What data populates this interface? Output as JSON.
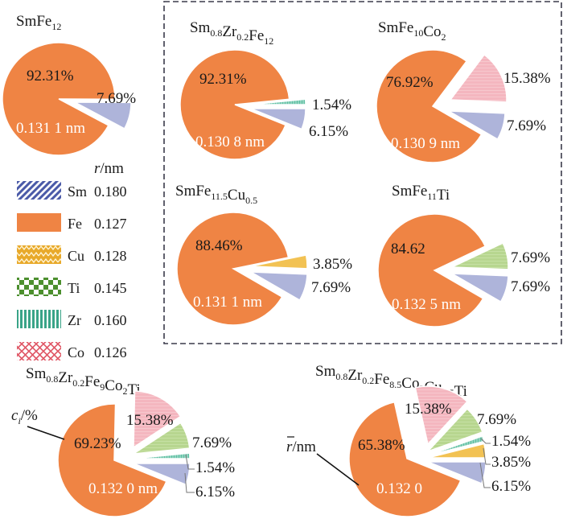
{
  "figure": {
    "legend_title": "r/nm",
    "legend_title_italic": "r",
    "legend_title_unit": "/nm",
    "annotation_ci": "c",
    "annotation_ci_sub": "i",
    "annotation_ci_unit": "/%",
    "annotation_rbar": "r",
    "annotation_rbar_unit": "/nm"
  },
  "colors": {
    "Sm": "#aeb4da",
    "Fe": "#ef8444",
    "Cu": "#f2c253",
    "Ti": "#b7d68f",
    "Zr": "#8fd3bf",
    "Co": "#f4b6bf",
    "Sm_pattern": "#4a5aa8",
    "Cu_pattern": "#e8a92a",
    "Ti_pattern": "#4c8f2e",
    "Zr_pattern": "#3aa488",
    "Co_pattern": "#e05766"
  },
  "legend": [
    {
      "element": "Sm",
      "radius": "0.180"
    },
    {
      "element": "Fe",
      "radius": "0.127"
    },
    {
      "element": "Cu",
      "radius": "0.128"
    },
    {
      "element": "Ti",
      "radius": "0.145"
    },
    {
      "element": "Zr",
      "radius": "0.160"
    },
    {
      "element": "Co",
      "radius": "0.126"
    }
  ],
  "chart_data": [
    {
      "type": "pie",
      "title": "SmFe12",
      "title_parts": [
        [
          "Sm",
          ""
        ],
        [
          "Fe",
          "12"
        ]
      ],
      "slices": [
        {
          "label": "Fe",
          "value": 92.31,
          "text": "92.31%"
        },
        {
          "label": "Sm",
          "value": 7.69,
          "text": "7.69%"
        }
      ],
      "mean_radius": "0.131 1 nm"
    },
    {
      "type": "pie",
      "title": "Sm0.8Zr0.2Fe12",
      "title_parts": [
        [
          "Sm",
          "0.8"
        ],
        [
          "Zr",
          "0.2"
        ],
        [
          "Fe",
          "12"
        ]
      ],
      "slices": [
        {
          "label": "Fe",
          "value": 92.31,
          "text": "92.31%"
        },
        {
          "label": "Zr",
          "value": 1.54,
          "text": "1.54%"
        },
        {
          "label": "Sm",
          "value": 6.15,
          "text": "6.15%"
        }
      ],
      "mean_radius": "0.130 8 nm"
    },
    {
      "type": "pie",
      "title": "SmFe10Co2",
      "title_parts": [
        [
          "Sm",
          ""
        ],
        [
          "Fe",
          "10"
        ],
        [
          "Co",
          "2"
        ]
      ],
      "slices": [
        {
          "label": "Fe",
          "value": 76.92,
          "text": "76.92%"
        },
        {
          "label": "Co",
          "value": 15.38,
          "text": "15.38%"
        },
        {
          "label": "Sm",
          "value": 7.69,
          "text": "7.69%"
        }
      ],
      "mean_radius": "0.130 9 nm"
    },
    {
      "type": "pie",
      "title": "SmFe11.5Cu0.5",
      "title_parts": [
        [
          "Sm",
          ""
        ],
        [
          "Fe",
          "11.5"
        ],
        [
          "Cu",
          "0.5"
        ]
      ],
      "slices": [
        {
          "label": "Fe",
          "value": 88.46,
          "text": "88.46%"
        },
        {
          "label": "Cu",
          "value": 3.85,
          "text": "3.85%"
        },
        {
          "label": "Sm",
          "value": 7.69,
          "text": "7.69%"
        }
      ],
      "mean_radius": "0.131 1 nm"
    },
    {
      "type": "pie",
      "title": "SmFe11Ti",
      "title_parts": [
        [
          "Sm",
          ""
        ],
        [
          "Fe",
          "11"
        ],
        [
          "Ti",
          ""
        ]
      ],
      "slices": [
        {
          "label": "Fe",
          "value": 84.62,
          "text": "84.62"
        },
        {
          "label": "Ti",
          "value": 7.69,
          "text": "7.69%"
        },
        {
          "label": "Sm",
          "value": 7.69,
          "text": "7.69%"
        }
      ],
      "mean_radius": "0.132 5 nm"
    },
    {
      "type": "pie",
      "title": "Sm0.8Zr0.2Fe9Co2Ti",
      "title_parts": [
        [
          "Sm",
          "0.8"
        ],
        [
          "Zr",
          "0.2"
        ],
        [
          "Fe",
          "9"
        ],
        [
          "Co",
          "2"
        ],
        [
          "Ti",
          ""
        ]
      ],
      "slices": [
        {
          "label": "Fe",
          "value": 69.23,
          "text": "69.23%"
        },
        {
          "label": "Co",
          "value": 15.38,
          "text": "15.38%"
        },
        {
          "label": "Ti",
          "value": 7.69,
          "text": "7.69%"
        },
        {
          "label": "Zr",
          "value": 1.54,
          "text": "1.54%"
        },
        {
          "label": "Sm",
          "value": 6.15,
          "text": "6.15%"
        }
      ],
      "mean_radius": "0.132 0 nm"
    },
    {
      "type": "pie",
      "title": "Sm0.8Zr0.2Fe8.5Co2Cu0.5Ti",
      "title_parts": [
        [
          "Sm",
          "0.8"
        ],
        [
          "Zr",
          "0.2"
        ],
        [
          "Fe",
          "8.5"
        ],
        [
          "Co",
          "2"
        ],
        [
          "Cu",
          "0.5"
        ],
        [
          "Ti",
          ""
        ]
      ],
      "slices": [
        {
          "label": "Fe",
          "value": 65.38,
          "text": "65.38%"
        },
        {
          "label": "Co",
          "value": 15.38,
          "text": "15.38%"
        },
        {
          "label": "Ti",
          "value": 7.69,
          "text": "7.69%"
        },
        {
          "label": "Zr",
          "value": 1.54,
          "text": "1.54%"
        },
        {
          "label": "Cu",
          "value": 3.85,
          "text": "3.85%"
        },
        {
          "label": "Sm",
          "value": 6.15,
          "text": "6.15%"
        }
      ],
      "mean_radius": "0.132 0"
    }
  ]
}
